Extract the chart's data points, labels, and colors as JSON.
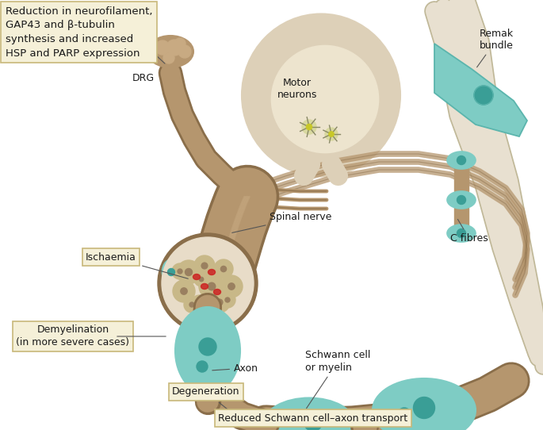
{
  "bg_color": "#ffffff",
  "tan_nerve": "#b5966e",
  "tan_light": "#c8aa82",
  "tan_dark": "#8a6e4a",
  "teal_schwann": "#7eccc4",
  "teal_dark": "#5bb5ad",
  "teal_dot": "#3a9e96",
  "beige_bg": "#e8ddc8",
  "cream_box": "#f5f0d8",
  "box_border": "#c8b87a",
  "red_isch": "#cc2222",
  "label_color": "#1a1a1a",
  "spinal_cord_bg": "#ddd0b8",
  "remak_color": "#e8e0d0",
  "remak_outline": "#c0b898",
  "ann_labels": {
    "top_box": "Reduction in neurofilament,\nGAP43 and β-tubulin\nsynthesis and increased\nHSP and PARP expression",
    "drg": "DRG",
    "motor": "Motor\nneurons",
    "spinal_nerve": "Spinal nerve",
    "remak": "Remak\nbundle",
    "c_fibres": "C fibres",
    "ischaemia": "Ischaemia",
    "demyelin": "Demyelination\n(in more severe cases)",
    "axon": "Axon",
    "schwann": "Schwann cell\nor myelin",
    "degeneration": "Degeneration",
    "reduced": "Reduced Schwann cell–axon transport"
  }
}
